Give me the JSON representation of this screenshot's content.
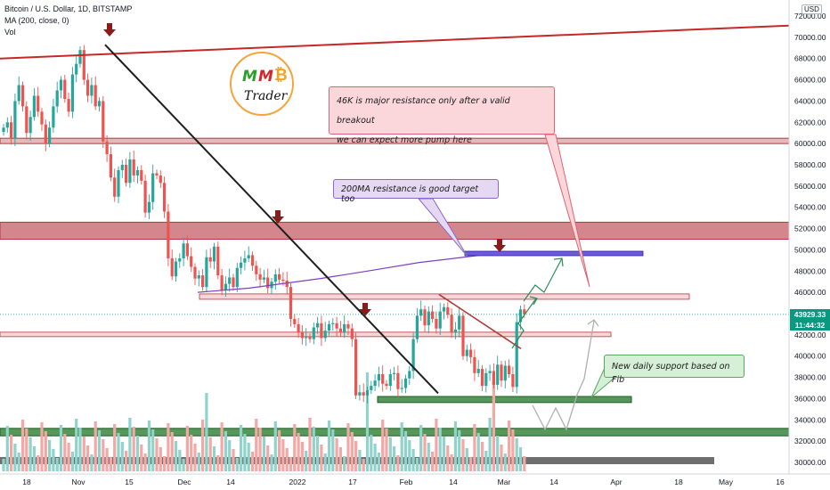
{
  "legend": {
    "title": "Bitcoin / U.S. Dollar, 1D, BITSTAMP",
    "ma": "MA (200, close, 0)",
    "vol": "Vol"
  },
  "price_axis": {
    "currency": "USD",
    "ticks": [
      "72000.00",
      "70000.00",
      "68000.00",
      "66000.00",
      "64000.00",
      "62000.00",
      "60000.00",
      "58000.00",
      "56000.00",
      "54000.00",
      "52000.00",
      "50000.00",
      "48000.00",
      "46000.00",
      "44000.00",
      "42000.00",
      "40000.00",
      "38000.00",
      "36000.00",
      "34000.00",
      "32000.00",
      "30000.00"
    ],
    "last_price": "43929.33",
    "countdown": "11:44:32"
  },
  "time_axis": {
    "labels": [
      "18",
      "Nov",
      "15",
      "Dec",
      "14",
      "2022",
      "17",
      "Feb",
      "14",
      "Mar",
      "14",
      "Apr",
      "18",
      "May",
      "16"
    ]
  },
  "callouts": {
    "resistance_line1": "46K is major resistance only after a valid breakout",
    "resistance_line2": "we can expect more pump here",
    "ma_target": "200MA resistance is good target too",
    "support": "New daily support based on Fib"
  },
  "logo": {
    "m1": "M",
    "m2": "M",
    "btc": "₿",
    "text": "Trader"
  },
  "colors": {
    "up": "#26a69a",
    "down": "#ef5350",
    "ma": "#7e3fbf",
    "resistance_zone": "#b5363f",
    "support_zone": "#2e7d32",
    "trendline_black": "#1e1e1e",
    "trendline_red": "#c62828",
    "arrow_marker": "#8b1a1a",
    "projection_green": "#2e8b57",
    "projection_gray": "#b0b0b0"
  },
  "chart_data": {
    "type": "candlestick",
    "ylim": [
      29000,
      72500
    ],
    "grid": false,
    "closes": [
      61500,
      62000,
      60500,
      64000,
      65500,
      63500,
      61000,
      62500,
      64500,
      63000,
      61800,
      60000,
      61500,
      63500,
      65000,
      66000,
      64200,
      63000,
      66500,
      67500,
      68800,
      66000,
      64500,
      65500,
      63500,
      64000,
      60200,
      59000,
      56800,
      55000,
      57500,
      58000,
      56300,
      58500,
      57000,
      57500,
      56500,
      53500,
      54500,
      57200,
      57000,
      56300,
      53600,
      49200,
      47500,
      48900,
      49200,
      50600,
      49400,
      48400,
      47300,
      47600,
      46500,
      49300,
      48900,
      50300,
      47600,
      46200,
      46800,
      47400,
      46500,
      48300,
      48800,
      49200,
      49500,
      48500,
      47700,
      47200,
      47400,
      46400,
      47000,
      47700,
      47200,
      47100,
      46500,
      43500,
      43000,
      42200,
      41700,
      41800,
      41600,
      42700,
      43100,
      41700,
      42400,
      43000,
      43100,
      42600,
      42200,
      43000,
      42600,
      41600,
      36300,
      36600,
      36300,
      36800,
      37200,
      37700,
      38300,
      37400,
      37200,
      38300,
      38400,
      36900,
      37000,
      37900,
      38600,
      41600,
      43800,
      44400,
      42900,
      44200,
      43500,
      42600,
      44200,
      44600,
      43900,
      42200,
      42500,
      43800,
      40000,
      40600,
      39900,
      38400,
      38800,
      37200,
      38400,
      38600,
      37300,
      39200,
      37700,
      39100,
      38300,
      37100,
      43200,
      44400,
      43929
    ],
    "ma_values": [
      46000,
      46400,
      47300,
      48100,
      48800,
      49300,
      49700,
      49500
    ],
    "levels": {
      "resistance_zones": [
        [
          60000,
          60500
        ],
        [
          51000,
          52600
        ]
      ],
      "support_zones": [
        [
          35800,
          36200
        ],
        [
          32500,
          33200
        ]
      ],
      "horizontal_lines": [
        45600,
        42000
      ]
    }
  }
}
